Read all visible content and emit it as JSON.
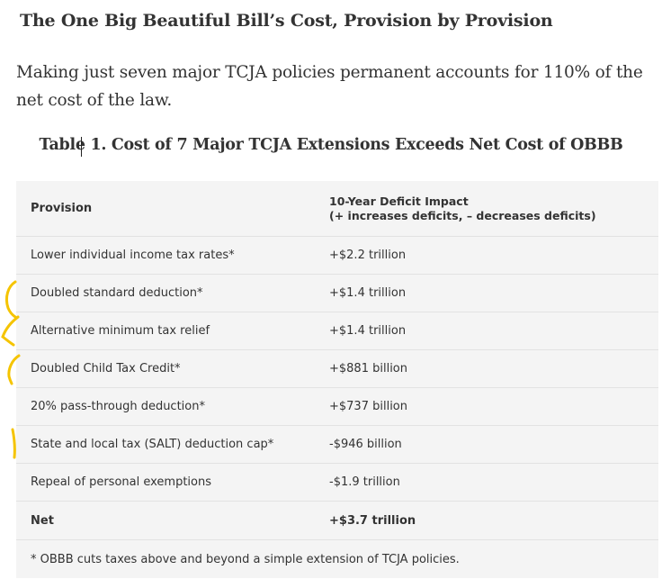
{
  "article": {
    "heading": "The One Big Beautiful Bill’s Cost, Provision by Provision",
    "lead": "Making just seven major TCJA policies permanent accounts for 110% of the net cost of the law.",
    "table_title": "Table 1. Cost of 7 Major TCJA Extensions Exceeds Net Cost of OBBB"
  },
  "table": {
    "header": {
      "provision": "Provision",
      "impact_line1": "10-Year Deficit Impact",
      "impact_line2": "(+ increases deficits, – decreases deficits)"
    },
    "rows": [
      {
        "provision": "Lower individual income tax rates*",
        "impact": "+$2.2 trillion"
      },
      {
        "provision": "Doubled standard deduction*",
        "impact": "+$1.4 trillion"
      },
      {
        "provision": "Alternative minimum tax relief",
        "impact": "+$1.4 trillion"
      },
      {
        "provision": "Doubled Child Tax Credit*",
        "impact": "+$881 billion"
      },
      {
        "provision": "20% pass-through deduction*",
        "impact": "+$737 billion"
      },
      {
        "provision": "State and local tax (SALT) deduction cap*",
        "impact": "-$946 billion"
      },
      {
        "provision": "Repeal of personal exemptions",
        "impact": "-$1.9 trillion"
      }
    ],
    "total": {
      "provision": "Net",
      "impact": "+$3.7 trillion"
    },
    "footnote": "* OBBB cuts taxes above and beyond a simple extension of TCJA policies."
  },
  "colors": {
    "annotation": "#f5c400",
    "table_background": "#f4f4f4",
    "text": "#333333"
  }
}
